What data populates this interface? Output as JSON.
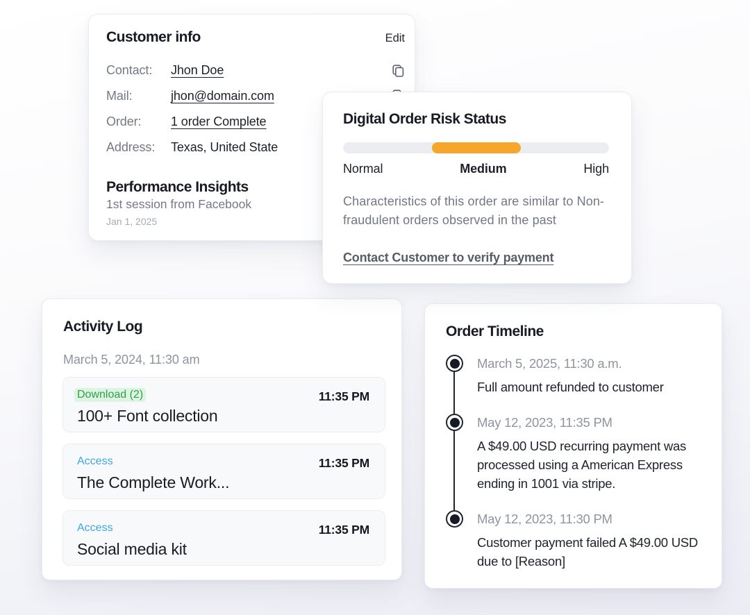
{
  "customer_info": {
    "title": "Customer info",
    "edit_label": "Edit",
    "fields": [
      {
        "label": "Contact:",
        "value": "Jhon Doe"
      },
      {
        "label": "Mail:",
        "value": "jhon@domain.com"
      },
      {
        "label": "Order:",
        "value": "1 order Complete"
      },
      {
        "label": "Address:",
        "value": "Texas, United State"
      }
    ],
    "performance": {
      "title": "Performance Insights",
      "subtitle": "1st session from Facebook",
      "date": "Jan 1, 2025"
    }
  },
  "risk_status": {
    "title": "Digital Order Risk Status",
    "levels": [
      "Normal",
      "Medium",
      "High"
    ],
    "active_level": "Medium",
    "bar": {
      "start_pct": 33.5,
      "width_pct": 33.3,
      "color": "#F6A72B",
      "track_color": "#ECEDF0"
    },
    "description": "Characteristics of this order are similar to Non-fraudulent orders observed in the past",
    "link_label": "Contact Customer to verify payment"
  },
  "activity_log": {
    "title": "Activity Log",
    "date": "March 5, 2024, 11:30 am",
    "items": [
      {
        "tag": "Download (2)",
        "tag_color": "#28a546",
        "tag_bg": "#dff3e3",
        "time": "11:35 PM",
        "name": "100+ Font collection"
      },
      {
        "tag": "Access",
        "tag_color": "#41a6e8",
        "tag_bg": "",
        "time": "11:35 PM",
        "name": "The Complete Work..."
      },
      {
        "tag": "Access",
        "tag_color": "#41a6e8",
        "tag_bg": "",
        "time": "11:35 PM",
        "name": "Social media kit"
      }
    ]
  },
  "order_timeline": {
    "title": "Order Timeline",
    "events": [
      {
        "date": "March 5, 2025, 11:30 a.m.",
        "text": "Full amount refunded to customer"
      },
      {
        "date": "May 12, 2023, 11:35 PM",
        "text": "A $49.00 USD recurring payment was processed using a American Express ending in 1001 via stripe."
      },
      {
        "date": "May 12, 2023, 11:30 PM",
        "text": "Customer payment failed A $49.00 USD due to [Reason]"
      }
    ]
  }
}
